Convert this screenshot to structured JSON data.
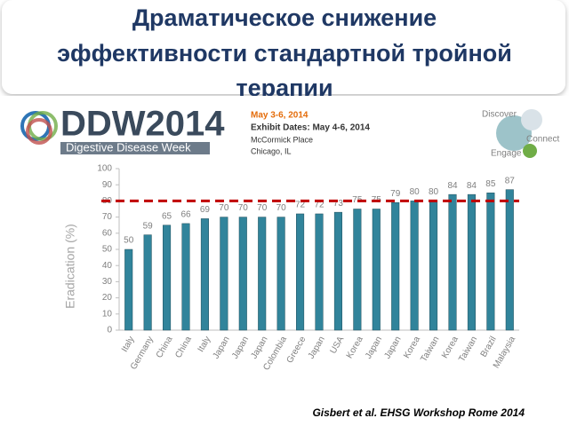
{
  "header": {
    "title_lines": [
      "Драматическое снижение",
      "эффективности стандартной тройной",
      "терапии"
    ]
  },
  "banner": {
    "logo": "DDW2014",
    "logo_subtitle": "Digestive Disease Week",
    "dates": "May 3-6, 2014",
    "exhibit": "Exhibit Dates: May 4-6, 2014",
    "place": "McCormick Place",
    "city": "Chicago, IL",
    "slogan": [
      "Discover",
      "Connect",
      "Engage"
    ]
  },
  "chart_data": {
    "type": "bar",
    "y_label": "Eradication (%)",
    "categories": [
      "Italy",
      "Germany",
      "China",
      "China",
      "Italy",
      "Japan",
      "Japan",
      "Japan",
      "Colombia",
      "Greece",
      "Japan",
      "USA",
      "Korea",
      "Japan",
      "Japan",
      "Korea",
      "Taiwan",
      "Korea",
      "Taiwan",
      "Brazil",
      "Malaysia"
    ],
    "values": [
      50,
      59,
      65,
      66,
      69,
      70,
      70,
      70,
      70,
      72,
      72,
      73,
      75,
      75,
      79,
      80,
      80,
      84,
      84,
      85,
      87
    ],
    "color": "#31849b",
    "ylim": [
      0,
      100
    ],
    "yticks": [
      0,
      10,
      20,
      30,
      40,
      50,
      60,
      70,
      80,
      90,
      100
    ],
    "reference_line": {
      "value": 80,
      "color": "#c00000"
    }
  },
  "citation": "Gisbert et al. EHSG Workshop Rome 2014"
}
